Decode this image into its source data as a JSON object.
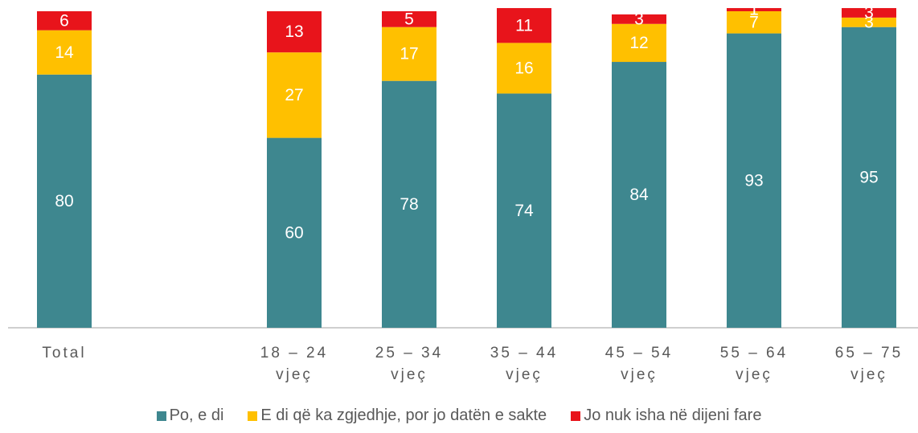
{
  "chart_data": {
    "type": "stacked_bar",
    "categories": [
      "Total",
      null,
      "18 – 24 vjeç",
      "25 – 34 vjeç",
      "35 – 44 vjeç",
      "45 – 54 vjeç",
      "55 – 64 vjeç",
      "65 – 75 vjeç"
    ],
    "series": [
      {
        "name": "Po, e di",
        "color": "#3e878f",
        "values": [
          80,
          null,
          60,
          78,
          74,
          84,
          93,
          95
        ]
      },
      {
        "name": "E di që ka zgjedhje, por jo datën e sakte",
        "color": "#ffc000",
        "values": [
          14,
          null,
          27,
          17,
          16,
          12,
          7,
          3
        ]
      },
      {
        "name": "Jo nuk isha në dijeni fare",
        "color": "#e8141b",
        "values": [
          6,
          null,
          13,
          5,
          11,
          3,
          1,
          3
        ]
      }
    ],
    "ylim": [
      0,
      100
    ],
    "legend": "bottom"
  }
}
